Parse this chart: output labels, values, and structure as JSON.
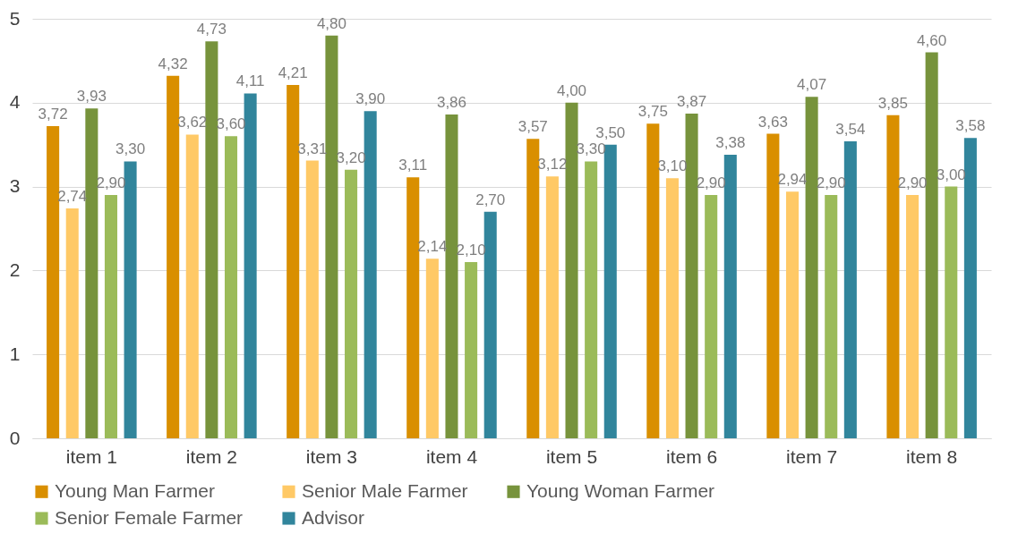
{
  "chart_data": {
    "type": "bar",
    "categories": [
      "item 1",
      "item 2",
      "item 3",
      "item 4",
      "item 5",
      "item 6",
      "item 7",
      "item 8"
    ],
    "series": [
      {
        "name": "Young Man Farmer",
        "color": "#d98f00",
        "values": [
          3.72,
          4.32,
          4.21,
          3.11,
          3.57,
          3.75,
          3.63,
          3.85
        ],
        "value_labels": [
          "3,72",
          "4,32",
          "4,21",
          "3,11",
          "3,57",
          "3,75",
          "3,63",
          "3,85"
        ]
      },
      {
        "name": "Senior Male Farmer",
        "color": "#ffc966",
        "values": [
          2.74,
          3.62,
          3.31,
          2.14,
          3.12,
          3.1,
          2.94,
          2.9
        ],
        "value_labels": [
          "2,74",
          "3,62",
          "3,31",
          "2,14",
          "3,12",
          "3,10",
          "2,94",
          "2,90"
        ]
      },
      {
        "name": "Young Woman Farmer",
        "color": "#77933c",
        "values": [
          3.93,
          4.73,
          4.8,
          3.86,
          4.0,
          3.87,
          4.07,
          4.6
        ],
        "value_labels": [
          "3,93",
          "4,73",
          "4,80",
          "3,86",
          "4,00",
          "3,87",
          "4,07",
          "4,60"
        ]
      },
      {
        "name": "Senior Female Farmer",
        "color": "#9bbb59",
        "values": [
          2.9,
          3.6,
          3.2,
          2.1,
          3.3,
          2.9,
          2.9,
          3.0
        ],
        "value_labels": [
          "2,90",
          "3,60",
          "3,20",
          "2,10",
          "3,30",
          "2,90",
          "2,90",
          "3,00"
        ]
      },
      {
        "name": "Advisor",
        "color": "#31859c",
        "values": [
          3.3,
          4.11,
          3.9,
          2.7,
          3.5,
          3.38,
          3.54,
          3.58
        ],
        "value_labels": [
          "3,30",
          "4,11",
          "3,90",
          "2,70",
          "3,50",
          "3,38",
          "3,54",
          "3,58"
        ]
      }
    ],
    "ylim": [
      0,
      5
    ],
    "yticks": [
      0,
      1,
      2,
      3,
      4,
      5
    ],
    "grid": "y",
    "legend": "bottom"
  }
}
